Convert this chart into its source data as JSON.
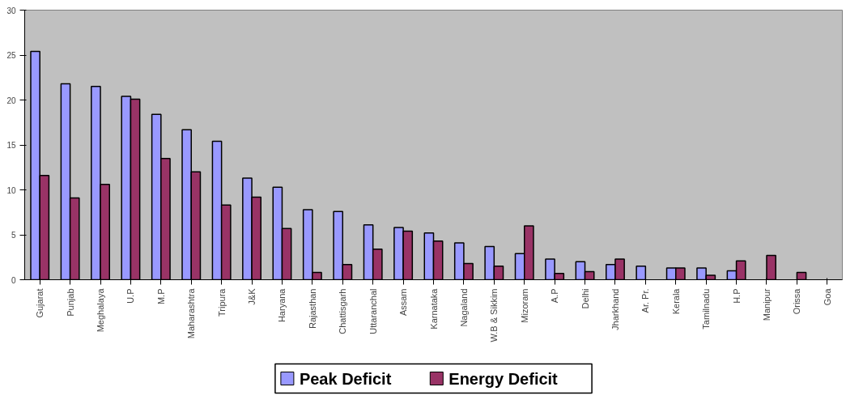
{
  "chart_data": {
    "type": "bar",
    "categories": [
      "Gujarat",
      "Punjab",
      "Meghalaya",
      "U.P",
      "M.P",
      "Maharashtra",
      "Tripura",
      "J&K",
      "Haryana",
      "Rajasthan",
      "Chattisgarh",
      "Uttaranchal",
      "Assam",
      "Karnataka",
      "Nagaland",
      "W.B & Sikkim",
      "Mizoram",
      "A.P",
      "Delhi",
      "Jharkhand",
      "Ar. Pr.",
      "Kerala",
      "Tamilnadu",
      "H.P",
      "Manipur",
      "Orissa",
      "Goa"
    ],
    "series": [
      {
        "name": "Peak Deficit",
        "color": "#9999ff",
        "values": [
          25.4,
          21.8,
          21.5,
          20.4,
          18.4,
          16.7,
          15.4,
          11.3,
          10.3,
          7.8,
          7.6,
          6.1,
          5.8,
          5.2,
          4.1,
          3.7,
          2.9,
          2.3,
          2.0,
          1.7,
          1.5,
          1.3,
          1.3,
          1.0,
          null,
          null,
          null
        ]
      },
      {
        "name": "Energy Deficit",
        "color": "#993366",
        "values": [
          11.6,
          9.1,
          10.6,
          20.1,
          13.5,
          12.0,
          8.3,
          9.2,
          5.7,
          0.8,
          1.7,
          3.4,
          5.4,
          4.3,
          1.8,
          1.5,
          6.0,
          0.7,
          0.9,
          2.3,
          null,
          1.3,
          0.5,
          2.1,
          2.7,
          0.8,
          null
        ]
      }
    ],
    "ylim": [
      0,
      30
    ],
    "yticks": [
      0,
      5,
      10,
      15,
      20,
      25,
      30
    ],
    "grid": false,
    "legend": "bottom"
  }
}
